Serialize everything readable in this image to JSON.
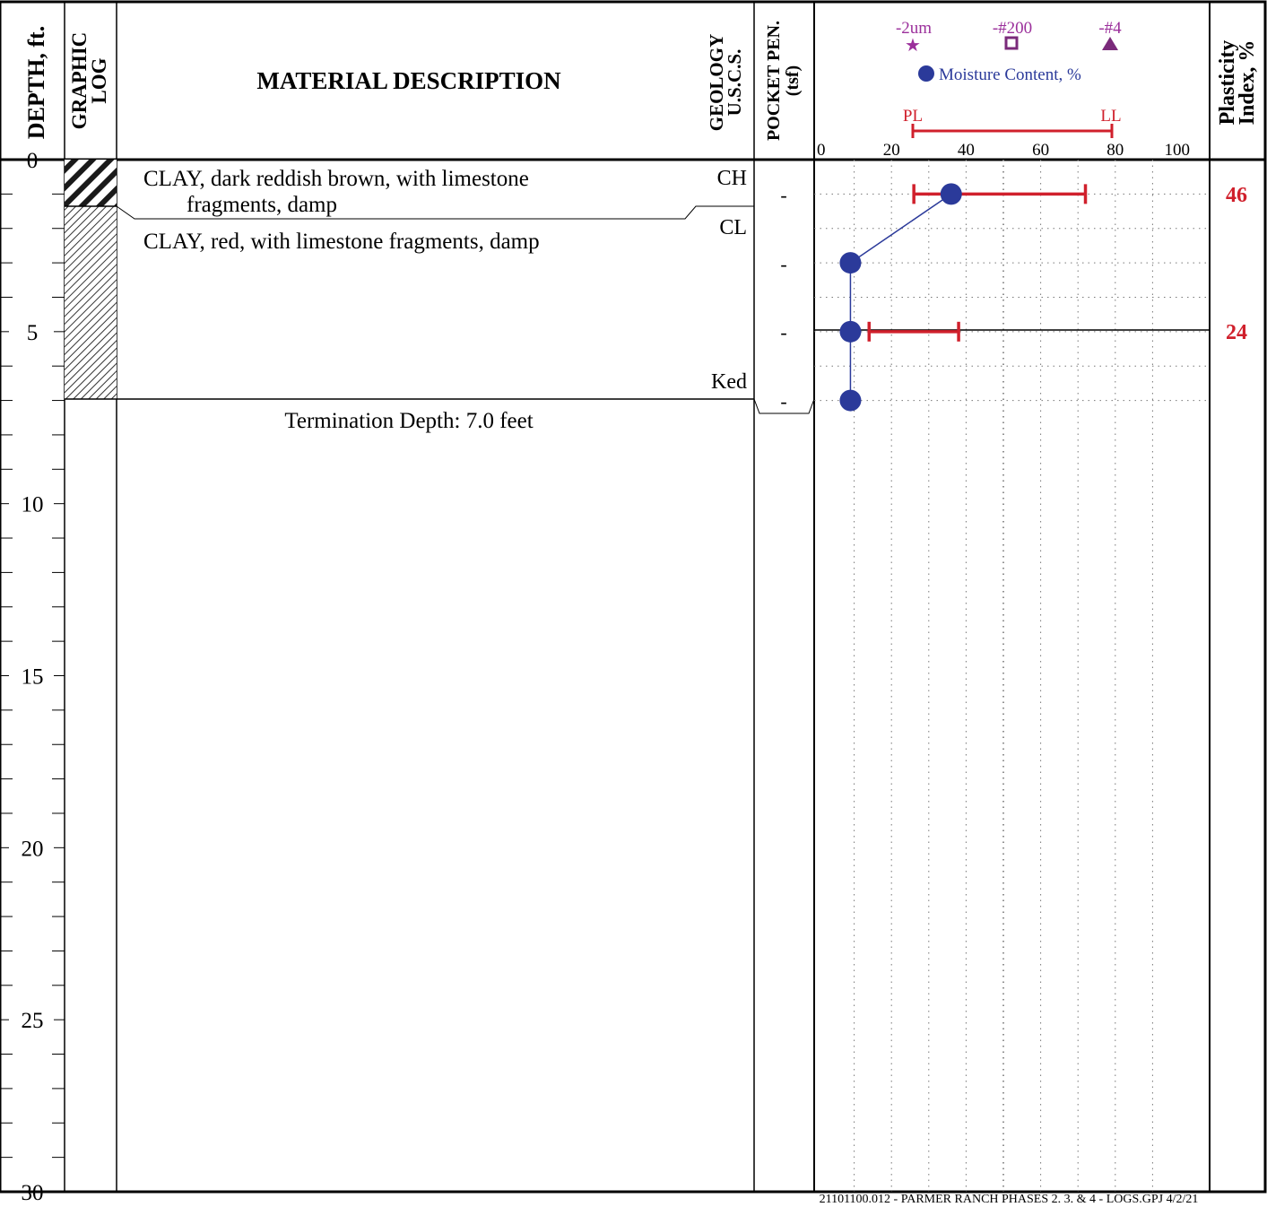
{
  "header": {
    "depth_label": "DEPTH, ft.",
    "graphic_log_label_1": "GRAPHIC",
    "graphic_log_label_2": "LOG",
    "material_description_label": "MATERIAL DESCRIPTION",
    "geology_label_1": "GEOLOGY",
    "geology_label_2": "U.S.C.S.",
    "pocket_pen_label_1": "POCKET PEN.",
    "pocket_pen_label_2": "(tsf)",
    "plasticity_label_1": "Plasticity",
    "plasticity_label_2": "Index, %",
    "legend": {
      "clay_fraction": "-2um",
      "fines": "-#200",
      "gravel": "-#4",
      "moisture": "Moisture Content, %",
      "pl": "PL",
      "ll": "LL"
    },
    "scale_ticks": [
      "0",
      "20",
      "40",
      "60",
      "80",
      "100"
    ]
  },
  "depth_ticks": [
    "0",
    "5",
    "10",
    "15",
    "20",
    "25",
    "30"
  ],
  "layers": [
    {
      "line1": "CLAY, dark reddish brown, with limestone",
      "line2": "fragments, damp",
      "uscs": "CH"
    },
    {
      "line1": "CLAY, red, with limestone fragments, damp",
      "line2": "",
      "uscs": "CL"
    }
  ],
  "geology_label": "Ked",
  "termination": "Termination Depth: 7.0 feet",
  "pocket_pen": [
    "-",
    "-",
    "-",
    "-"
  ],
  "plasticity_index": [
    "46",
    "24"
  ],
  "footer": "21101100.012 - PARMER RANCH PHASES 2, 3, & 4 - LOGS.GPJ 4/2/21",
  "chart_data": {
    "type": "scatter",
    "title": "",
    "xlabel": "Moisture Content, %",
    "ylabel": "DEPTH, ft.",
    "xlim": [
      0,
      100
    ],
    "ylim": [
      0,
      30
    ],
    "moisture_content": [
      {
        "depth": 1,
        "value": 36
      },
      {
        "depth": 3,
        "value": 9
      },
      {
        "depth": 5,
        "value": 9
      },
      {
        "depth": 7,
        "value": 9
      }
    ],
    "atterberg_limits": [
      {
        "depth": 1,
        "pl": 26,
        "ll": 72,
        "pi": 46
      },
      {
        "depth": 5,
        "pl": 14,
        "ll": 38,
        "pi": 24
      }
    ],
    "colors": {
      "moisture": "#2b3a9a",
      "limits": "#d0202c",
      "legend_purple": "#9b2f9b"
    }
  }
}
